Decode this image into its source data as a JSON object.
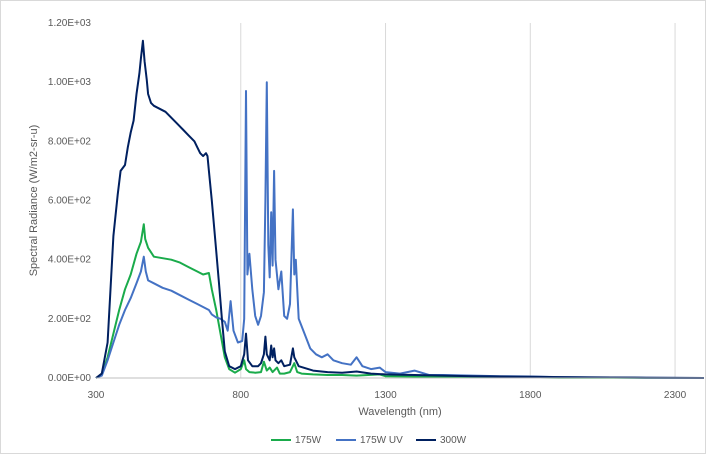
{
  "chart_data": {
    "type": "line",
    "xlabel": "Wavelength (nm)",
    "ylabel": "Spectral Radiance (W/m2-sr-u)",
    "xlim": [
      300,
      2400
    ],
    "ylim": [
      0,
      1200
    ],
    "x_ticks": [
      300,
      800,
      1300,
      1800,
      2300
    ],
    "x_tick_labels": [
      "300",
      "800",
      "1300",
      "1800",
      "2300"
    ],
    "y_ticks": [
      0,
      200,
      400,
      600,
      800,
      1000,
      1200
    ],
    "y_tick_labels": [
      "0.00E+00",
      "2.00E+02",
      "4.00E+02",
      "6.00E+02",
      "8.00E+02",
      "1.00E+03",
      "1.20E+03"
    ],
    "grid": {
      "vertical": true,
      "horizontal": false
    },
    "legend_position": "bottom",
    "series": [
      {
        "name": "175W",
        "color": "#1aab4b",
        "points": [
          [
            300,
            0
          ],
          [
            320,
            10
          ],
          [
            340,
            70
          ],
          [
            360,
            150
          ],
          [
            380,
            230
          ],
          [
            400,
            300
          ],
          [
            420,
            350
          ],
          [
            440,
            420
          ],
          [
            455,
            460
          ],
          [
            465,
            520
          ],
          [
            470,
            470
          ],
          [
            480,
            440
          ],
          [
            500,
            410
          ],
          [
            530,
            405
          ],
          [
            560,
            400
          ],
          [
            590,
            390
          ],
          [
            620,
            375
          ],
          [
            650,
            360
          ],
          [
            670,
            350
          ],
          [
            690,
            355
          ],
          [
            700,
            300
          ],
          [
            715,
            230
          ],
          [
            730,
            150
          ],
          [
            745,
            70
          ],
          [
            760,
            30
          ],
          [
            780,
            18
          ],
          [
            800,
            30
          ],
          [
            812,
            60
          ],
          [
            818,
            30
          ],
          [
            830,
            20
          ],
          [
            850,
            18
          ],
          [
            870,
            20
          ],
          [
            880,
            55
          ],
          [
            890,
            25
          ],
          [
            900,
            35
          ],
          [
            910,
            20
          ],
          [
            925,
            35
          ],
          [
            935,
            15
          ],
          [
            950,
            15
          ],
          [
            970,
            20
          ],
          [
            985,
            50
          ],
          [
            995,
            20
          ],
          [
            1010,
            15
          ],
          [
            1050,
            12
          ],
          [
            1100,
            10
          ],
          [
            1150,
            10
          ],
          [
            1200,
            8
          ],
          [
            1280,
            12
          ],
          [
            1300,
            6
          ],
          [
            1400,
            5
          ],
          [
            1500,
            5
          ],
          [
            1600,
            4
          ],
          [
            1700,
            3
          ],
          [
            1800,
            2
          ],
          [
            1900,
            1
          ],
          [
            2000,
            1
          ],
          [
            2100,
            1
          ],
          [
            2200,
            0
          ],
          [
            2400,
            0
          ]
        ]
      },
      {
        "name": "175W UV",
        "color": "#4472c4",
        "points": [
          [
            300,
            0
          ],
          [
            320,
            8
          ],
          [
            340,
            60
          ],
          [
            360,
            120
          ],
          [
            380,
            180
          ],
          [
            400,
            230
          ],
          [
            420,
            270
          ],
          [
            440,
            320
          ],
          [
            455,
            360
          ],
          [
            465,
            410
          ],
          [
            472,
            360
          ],
          [
            480,
            330
          ],
          [
            500,
            320
          ],
          [
            530,
            305
          ],
          [
            560,
            295
          ],
          [
            590,
            280
          ],
          [
            620,
            265
          ],
          [
            650,
            250
          ],
          [
            670,
            240
          ],
          [
            690,
            230
          ],
          [
            700,
            215
          ],
          [
            715,
            205
          ],
          [
            730,
            200
          ],
          [
            745,
            190
          ],
          [
            755,
            160
          ],
          [
            765,
            260
          ],
          [
            775,
            160
          ],
          [
            790,
            120
          ],
          [
            805,
            125
          ],
          [
            812,
            200
          ],
          [
            818,
            970
          ],
          [
            823,
            350
          ],
          [
            830,
            420
          ],
          [
            840,
            300
          ],
          [
            850,
            210
          ],
          [
            860,
            180
          ],
          [
            870,
            210
          ],
          [
            880,
            290
          ],
          [
            885,
            600
          ],
          [
            890,
            1000
          ],
          [
            895,
            450
          ],
          [
            900,
            340
          ],
          [
            905,
            560
          ],
          [
            910,
            380
          ],
          [
            915,
            700
          ],
          [
            920,
            400
          ],
          [
            930,
            300
          ],
          [
            940,
            360
          ],
          [
            950,
            210
          ],
          [
            960,
            200
          ],
          [
            970,
            250
          ],
          [
            980,
            570
          ],
          [
            985,
            350
          ],
          [
            990,
            400
          ],
          [
            1000,
            200
          ],
          [
            1020,
            150
          ],
          [
            1040,
            100
          ],
          [
            1060,
            80
          ],
          [
            1080,
            70
          ],
          [
            1100,
            80
          ],
          [
            1120,
            60
          ],
          [
            1150,
            50
          ],
          [
            1180,
            45
          ],
          [
            1200,
            70
          ],
          [
            1220,
            40
          ],
          [
            1250,
            30
          ],
          [
            1280,
            35
          ],
          [
            1300,
            20
          ],
          [
            1350,
            15
          ],
          [
            1400,
            25
          ],
          [
            1450,
            10
          ],
          [
            1500,
            10
          ],
          [
            1600,
            8
          ],
          [
            1700,
            6
          ],
          [
            1800,
            5
          ],
          [
            1900,
            3
          ],
          [
            2000,
            2
          ],
          [
            2200,
            1
          ],
          [
            2400,
            0
          ]
        ]
      },
      {
        "name": "300W",
        "color": "#002060",
        "points": [
          [
            300,
            0
          ],
          [
            320,
            15
          ],
          [
            340,
            120
          ],
          [
            350,
            300
          ],
          [
            360,
            480
          ],
          [
            375,
            620
          ],
          [
            385,
            700
          ],
          [
            400,
            720
          ],
          [
            410,
            780
          ],
          [
            420,
            830
          ],
          [
            430,
            870
          ],
          [
            440,
            960
          ],
          [
            450,
            1030
          ],
          [
            455,
            1080
          ],
          [
            462,
            1140
          ],
          [
            468,
            1070
          ],
          [
            475,
            1010
          ],
          [
            480,
            960
          ],
          [
            490,
            930
          ],
          [
            500,
            920
          ],
          [
            520,
            910
          ],
          [
            540,
            900
          ],
          [
            560,
            880
          ],
          [
            580,
            860
          ],
          [
            600,
            840
          ],
          [
            620,
            820
          ],
          [
            640,
            800
          ],
          [
            650,
            780
          ],
          [
            660,
            760
          ],
          [
            670,
            750
          ],
          [
            680,
            760
          ],
          [
            685,
            750
          ],
          [
            690,
            700
          ],
          [
            700,
            600
          ],
          [
            715,
            430
          ],
          [
            725,
            320
          ],
          [
            735,
            200
          ],
          [
            745,
            90
          ],
          [
            760,
            40
          ],
          [
            780,
            30
          ],
          [
            800,
            40
          ],
          [
            812,
            80
          ],
          [
            818,
            150
          ],
          [
            825,
            60
          ],
          [
            840,
            40
          ],
          [
            860,
            40
          ],
          [
            870,
            50
          ],
          [
            880,
            80
          ],
          [
            885,
            140
          ],
          [
            890,
            80
          ],
          [
            900,
            60
          ],
          [
            905,
            110
          ],
          [
            910,
            70
          ],
          [
            915,
            100
          ],
          [
            920,
            60
          ],
          [
            930,
            50
          ],
          [
            940,
            60
          ],
          [
            950,
            40
          ],
          [
            970,
            45
          ],
          [
            980,
            100
          ],
          [
            985,
            70
          ],
          [
            990,
            60
          ],
          [
            1000,
            40
          ],
          [
            1050,
            25
          ],
          [
            1100,
            20
          ],
          [
            1150,
            18
          ],
          [
            1200,
            22
          ],
          [
            1250,
            15
          ],
          [
            1300,
            12
          ],
          [
            1400,
            10
          ],
          [
            1500,
            8
          ],
          [
            1600,
            6
          ],
          [
            1700,
            5
          ],
          [
            1800,
            4
          ],
          [
            1900,
            3
          ],
          [
            2000,
            2
          ],
          [
            2200,
            1
          ],
          [
            2400,
            0
          ]
        ]
      }
    ]
  }
}
